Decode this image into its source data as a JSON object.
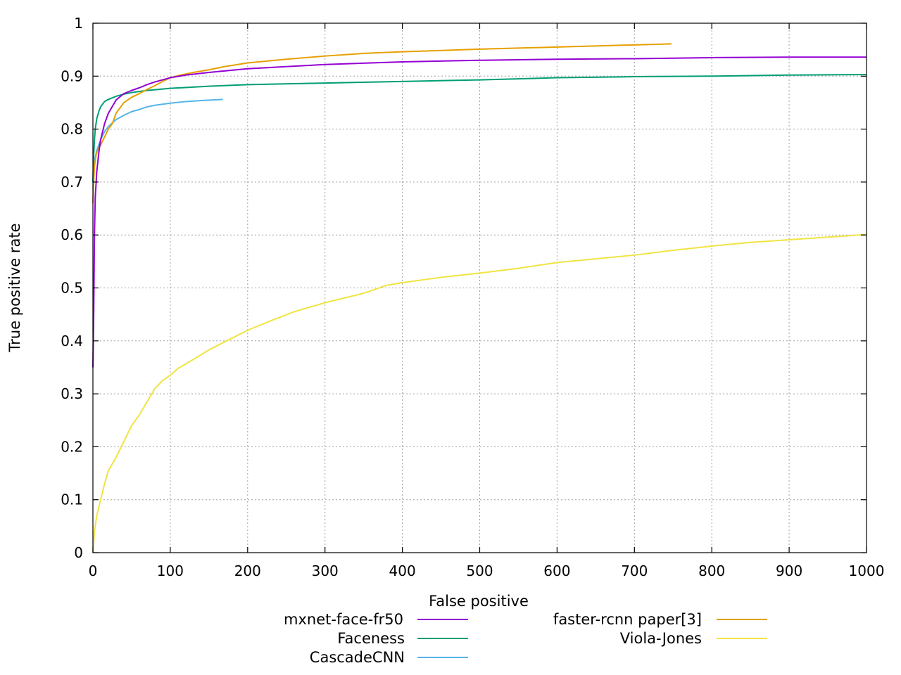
{
  "chart_data": {
    "type": "line",
    "title": "",
    "xlabel": "False positive",
    "ylabel": "True positive rate",
    "xlim": [
      0,
      1000
    ],
    "ylim": [
      0,
      1
    ],
    "grid": true,
    "legend_position": "bottom",
    "x_ticks": [
      "0",
      "100",
      "200",
      "300",
      "400",
      "500",
      "600",
      "700",
      "800",
      "900",
      "1000"
    ],
    "y_ticks": [
      "0",
      "0.1",
      "0.2",
      "0.3",
      "0.4",
      "0.5",
      "0.6",
      "0.7",
      "0.8",
      "0.9",
      "1"
    ],
    "series": [
      {
        "name": "mxnet-face-fr50",
        "color": "#9400d3",
        "x": [
          0,
          1,
          2,
          3,
          5,
          8,
          10,
          15,
          20,
          30,
          40,
          50,
          60,
          70,
          80,
          90,
          100,
          120,
          150,
          200,
          300,
          400,
          500,
          600,
          700,
          800,
          900,
          1000
        ],
        "y": [
          0.35,
          0.45,
          0.6,
          0.67,
          0.72,
          0.76,
          0.78,
          0.81,
          0.83,
          0.855,
          0.867,
          0.873,
          0.878,
          0.884,
          0.889,
          0.893,
          0.897,
          0.902,
          0.907,
          0.914,
          0.922,
          0.927,
          0.93,
          0.932,
          0.933,
          0.935,
          0.936,
          0.936
        ]
      },
      {
        "name": "Faceness",
        "color": "#009e73",
        "x": [
          0,
          1,
          2,
          3,
          5,
          8,
          10,
          15,
          20,
          30,
          40,
          50,
          70,
          100,
          150,
          200,
          300,
          400,
          500,
          600,
          700,
          800,
          900,
          1000
        ],
        "y": [
          0.7,
          0.75,
          0.78,
          0.8,
          0.82,
          0.835,
          0.842,
          0.852,
          0.856,
          0.862,
          0.866,
          0.869,
          0.873,
          0.877,
          0.881,
          0.884,
          0.887,
          0.89,
          0.893,
          0.897,
          0.899,
          0.9,
          0.902,
          0.903
        ]
      },
      {
        "name": "CascadeCNN",
        "color": "#56b4e9",
        "x": [
          0,
          2,
          5,
          10,
          15,
          20,
          30,
          40,
          50,
          60,
          70,
          80,
          100,
          120,
          140,
          168
        ],
        "y": [
          0.7,
          0.74,
          0.76,
          0.78,
          0.795,
          0.805,
          0.818,
          0.826,
          0.833,
          0.837,
          0.842,
          0.845,
          0.849,
          0.852,
          0.854,
          0.856
        ]
      },
      {
        "name": "faster-rcnn paper[3]",
        "color": "#e69f00",
        "x": [
          0,
          1,
          2,
          4,
          6,
          10,
          15,
          20,
          25,
          30,
          40,
          50,
          60,
          70,
          80,
          90,
          100,
          110,
          130,
          150,
          170,
          200,
          250,
          300,
          350,
          400,
          500,
          600,
          700,
          748
        ],
        "y": [
          0.66,
          0.7,
          0.73,
          0.75,
          0.76,
          0.77,
          0.785,
          0.8,
          0.81,
          0.83,
          0.85,
          0.86,
          0.867,
          0.875,
          0.882,
          0.89,
          0.897,
          0.901,
          0.907,
          0.912,
          0.918,
          0.925,
          0.932,
          0.938,
          0.943,
          0.946,
          0.951,
          0.955,
          0.959,
          0.961
        ]
      },
      {
        "name": "Viola-Jones",
        "color": "#f0e442",
        "x": [
          0,
          2,
          5,
          10,
          15,
          20,
          30,
          40,
          50,
          60,
          70,
          80,
          90,
          100,
          110,
          130,
          150,
          170,
          200,
          230,
          260,
          300,
          350,
          380,
          400,
          450,
          500,
          550,
          600,
          650,
          700,
          750,
          800,
          850,
          900,
          950,
          1000
        ],
        "y": [
          0.0,
          0.04,
          0.07,
          0.1,
          0.13,
          0.155,
          0.18,
          0.21,
          0.24,
          0.26,
          0.285,
          0.31,
          0.325,
          0.335,
          0.348,
          0.365,
          0.383,
          0.398,
          0.42,
          0.438,
          0.455,
          0.472,
          0.49,
          0.505,
          0.51,
          0.52,
          0.528,
          0.537,
          0.548,
          0.555,
          0.562,
          0.571,
          0.579,
          0.586,
          0.591,
          0.596,
          0.601
        ]
      }
    ]
  }
}
